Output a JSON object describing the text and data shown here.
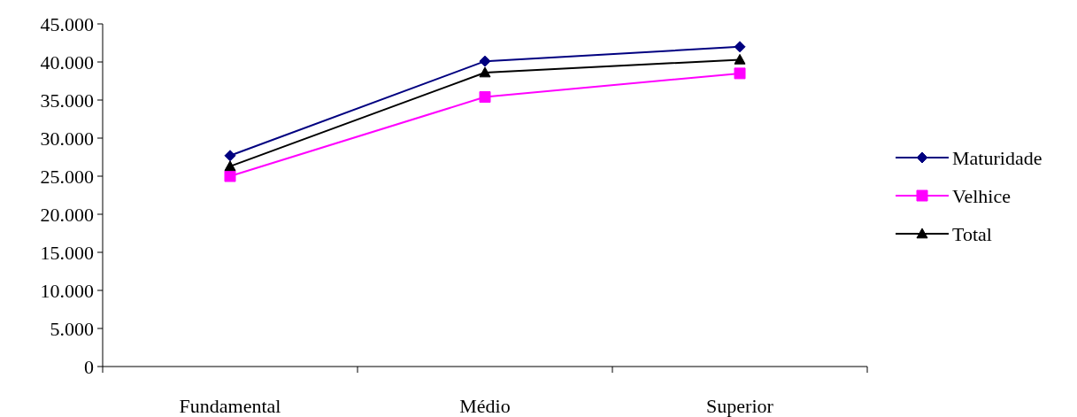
{
  "chart_data": {
    "type": "line",
    "categories": [
      "Fundamental",
      "Médio",
      "Superior"
    ],
    "series": [
      {
        "name": "Maturidade",
        "color": "#000080",
        "marker": "diamond",
        "values": [
          27700,
          40100,
          42000
        ]
      },
      {
        "name": "Velhice",
        "color": "#ff00ff",
        "marker": "square",
        "values": [
          25000,
          35400,
          38500
        ]
      },
      {
        "name": "Total",
        "color": "#000000",
        "marker": "triangle",
        "values": [
          26300,
          38600,
          40300
        ]
      }
    ],
    "ylim": [
      0,
      45000
    ],
    "yticks": [
      0,
      {
        "value": 5000,
        "label": "5.000"
      },
      {
        "value": 10000,
        "label": "10.000"
      },
      {
        "value": 15000,
        "label": "15.000"
      },
      {
        "value": 20000,
        "label": "20.000"
      },
      {
        "value": 25000,
        "label": "25.000"
      },
      {
        "value": 30000,
        "label": "30.000"
      },
      {
        "value": 35000,
        "label": "35.000"
      },
      {
        "value": 40000,
        "label": "40.000"
      },
      {
        "value": 45000,
        "label": "45.000"
      }
    ],
    "grid": false,
    "legend": "right",
    "line_style": "solid"
  }
}
